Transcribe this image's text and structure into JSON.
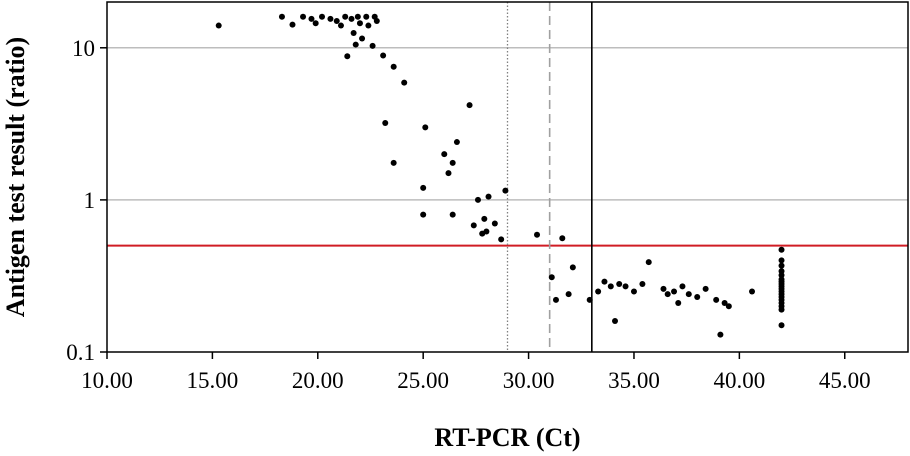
{
  "chart_data": {
    "type": "scatter",
    "xlabel": "RT-PCR (Ct)",
    "ylabel": "Antigen test result (ratio)",
    "xlim": [
      10,
      48
    ],
    "ylim": [
      0.1,
      20
    ],
    "y_scale": "log",
    "x_ticks": [
      "10.00",
      "15.00",
      "20.00",
      "25.00",
      "30.00",
      "35.00",
      "40.00",
      "45.00"
    ],
    "x_tick_values": [
      10,
      15,
      20,
      25,
      30,
      35,
      40,
      45
    ],
    "y_ticks": [
      "0.1",
      "1",
      "10"
    ],
    "y_tick_values": [
      0.1,
      1,
      10
    ],
    "horizontal_gridlines_at": [
      1,
      10
    ],
    "reference_lines": [
      {
        "orientation": "horizontal",
        "value": 0.5,
        "color": "#d01c24",
        "style": "solid"
      },
      {
        "orientation": "vertical",
        "value": 29,
        "color": "#808080",
        "style": "dotted"
      },
      {
        "orientation": "vertical",
        "value": 31,
        "color": "#a0a0a0",
        "style": "dashed"
      },
      {
        "orientation": "vertical",
        "value": 33,
        "color": "#000000",
        "style": "solid"
      }
    ],
    "points": [
      {
        "x": 15.3,
        "y": 14.0
      },
      {
        "x": 18.3,
        "y": 16.0
      },
      {
        "x": 18.8,
        "y": 14.2
      },
      {
        "x": 19.3,
        "y": 16.0
      },
      {
        "x": 19.7,
        "y": 15.5
      },
      {
        "x": 19.9,
        "y": 14.5
      },
      {
        "x": 20.2,
        "y": 16.0
      },
      {
        "x": 20.6,
        "y": 15.5
      },
      {
        "x": 20.9,
        "y": 15.0
      },
      {
        "x": 21.1,
        "y": 14.0
      },
      {
        "x": 21.3,
        "y": 16.0
      },
      {
        "x": 21.4,
        "y": 8.8
      },
      {
        "x": 21.6,
        "y": 15.5
      },
      {
        "x": 21.7,
        "y": 12.5
      },
      {
        "x": 21.8,
        "y": 10.5
      },
      {
        "x": 21.9,
        "y": 16.0
      },
      {
        "x": 22.0,
        "y": 14.5
      },
      {
        "x": 22.1,
        "y": 11.5
      },
      {
        "x": 22.3,
        "y": 16.0
      },
      {
        "x": 22.4,
        "y": 14.0
      },
      {
        "x": 22.6,
        "y": 10.3
      },
      {
        "x": 22.7,
        "y": 16.0
      },
      {
        "x": 22.8,
        "y": 15.0
      },
      {
        "x": 23.1,
        "y": 8.9
      },
      {
        "x": 23.6,
        "y": 7.5
      },
      {
        "x": 24.1,
        "y": 5.9
      },
      {
        "x": 23.2,
        "y": 3.2
      },
      {
        "x": 23.6,
        "y": 1.75
      },
      {
        "x": 25.1,
        "y": 3.0
      },
      {
        "x": 25.0,
        "y": 1.2
      },
      {
        "x": 25.0,
        "y": 0.8
      },
      {
        "x": 26.0,
        "y": 2.0
      },
      {
        "x": 26.2,
        "y": 1.5
      },
      {
        "x": 26.4,
        "y": 1.75
      },
      {
        "x": 26.6,
        "y": 2.4
      },
      {
        "x": 26.4,
        "y": 0.8
      },
      {
        "x": 27.2,
        "y": 4.2
      },
      {
        "x": 27.6,
        "y": 1.0
      },
      {
        "x": 27.4,
        "y": 0.68
      },
      {
        "x": 27.8,
        "y": 0.6
      },
      {
        "x": 27.9,
        "y": 0.75
      },
      {
        "x": 28.0,
        "y": 0.62
      },
      {
        "x": 28.1,
        "y": 1.05
      },
      {
        "x": 28.4,
        "y": 0.7
      },
      {
        "x": 28.7,
        "y": 0.55
      },
      {
        "x": 28.9,
        "y": 1.15
      },
      {
        "x": 30.4,
        "y": 0.59
      },
      {
        "x": 31.1,
        "y": 0.31
      },
      {
        "x": 31.3,
        "y": 0.22
      },
      {
        "x": 31.6,
        "y": 0.56
      },
      {
        "x": 31.9,
        "y": 0.24
      },
      {
        "x": 32.1,
        "y": 0.36
      },
      {
        "x": 32.9,
        "y": 0.22
      },
      {
        "x": 33.3,
        "y": 0.25
      },
      {
        "x": 33.6,
        "y": 0.29
      },
      {
        "x": 33.9,
        "y": 0.27
      },
      {
        "x": 34.1,
        "y": 0.16
      },
      {
        "x": 34.3,
        "y": 0.28
      },
      {
        "x": 34.6,
        "y": 0.27
      },
      {
        "x": 35.0,
        "y": 0.25
      },
      {
        "x": 35.4,
        "y": 0.28
      },
      {
        "x": 35.7,
        "y": 0.39
      },
      {
        "x": 36.4,
        "y": 0.26
      },
      {
        "x": 36.6,
        "y": 0.24
      },
      {
        "x": 36.9,
        "y": 0.25
      },
      {
        "x": 37.1,
        "y": 0.21
      },
      {
        "x": 37.3,
        "y": 0.27
      },
      {
        "x": 37.6,
        "y": 0.24
      },
      {
        "x": 38.0,
        "y": 0.23
      },
      {
        "x": 38.4,
        "y": 0.26
      },
      {
        "x": 38.9,
        "y": 0.22
      },
      {
        "x": 39.1,
        "y": 0.13
      },
      {
        "x": 39.3,
        "y": 0.21
      },
      {
        "x": 39.5,
        "y": 0.2
      },
      {
        "x": 40.6,
        "y": 0.25
      },
      {
        "x": 42.0,
        "y": 0.47
      },
      {
        "x": 42.0,
        "y": 0.4
      },
      {
        "x": 42.0,
        "y": 0.37
      },
      {
        "x": 42.0,
        "y": 0.34
      },
      {
        "x": 42.0,
        "y": 0.32
      },
      {
        "x": 42.0,
        "y": 0.3
      },
      {
        "x": 42.0,
        "y": 0.29
      },
      {
        "x": 42.0,
        "y": 0.28
      },
      {
        "x": 42.0,
        "y": 0.27
      },
      {
        "x": 42.0,
        "y": 0.26
      },
      {
        "x": 42.0,
        "y": 0.25
      },
      {
        "x": 42.0,
        "y": 0.24
      },
      {
        "x": 42.0,
        "y": 0.23
      },
      {
        "x": 42.0,
        "y": 0.22
      },
      {
        "x": 42.0,
        "y": 0.21
      },
      {
        "x": 42.0,
        "y": 0.2
      },
      {
        "x": 42.0,
        "y": 0.19
      },
      {
        "x": 42.0,
        "y": 0.15
      }
    ],
    "colors": {
      "points": "#000000",
      "grid": "#bdbdbd",
      "frame": "#000000"
    },
    "grid": "horizontal-only",
    "legend": "none"
  }
}
